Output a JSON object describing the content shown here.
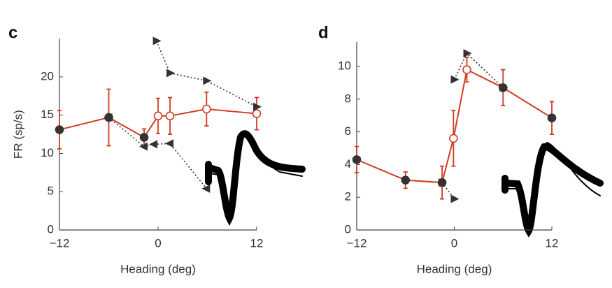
{
  "chart_data": [
    {
      "type": "line",
      "label": "c",
      "xlabel": "Heading (deg)",
      "ylabel": "FR (sp/s)",
      "xlim": [
        -12,
        12
      ],
      "xticks": [
        {
          "value": -12,
          "label": "−12"
        },
        0,
        12
      ],
      "ylim": [
        0,
        25
      ],
      "yticks": [
        0,
        5,
        10,
        15,
        20
      ],
      "series": [
        {
          "color": "#d13b22",
          "style": "solid",
          "marker": "circle",
          "x": [
            -12,
            -6,
            -1.7,
            0,
            1.45,
            5.9,
            12
          ],
          "values": [
            13.1,
            14.7,
            12.1,
            14.9,
            14.9,
            15.8,
            15.2
          ],
          "errors": [
            2.5,
            3.7,
            1.1,
            2.3,
            2.4,
            2.2,
            2.1
          ],
          "open": [
            false,
            false,
            false,
            true,
            true,
            true,
            true
          ]
        },
        {
          "color": "#333333",
          "style": "dotted",
          "marker": "triangle-left",
          "x": [
            -6,
            -1.7,
            -0.5,
            1.45,
            5.9
          ],
          "values": [
            14.7,
            10.9,
            11.2,
            11.3,
            5.4
          ]
        },
        {
          "color": "#333333",
          "style": "dotted",
          "marker": "triangle-right",
          "x": [
            -0.2,
            1.45,
            5.9,
            12
          ],
          "values": [
            24.7,
            20.5,
            19.5,
            16.1
          ]
        }
      ]
    },
    {
      "type": "line",
      "label": "d",
      "xlabel": "Heading (deg)",
      "xlim": [
        -12,
        12
      ],
      "xticks": [
        {
          "value": -12,
          "label": "−12"
        },
        0,
        12
      ],
      "ylim": [
        0,
        11.5
      ],
      "yticks": [
        0,
        2,
        4,
        6,
        8,
        10
      ],
      "series": [
        {
          "color": "#d13b22",
          "style": "solid",
          "marker": "circle",
          "x": [
            -12,
            -6,
            -1.5,
            -0.1,
            1.55,
            6,
            12
          ],
          "values": [
            4.3,
            3.05,
            2.9,
            5.6,
            9.8,
            8.7,
            6.85
          ],
          "errors": [
            0.8,
            0.5,
            1.0,
            1.7,
            0.75,
            1.1,
            1.0
          ],
          "open": [
            false,
            false,
            false,
            true,
            true,
            false,
            false
          ]
        },
        {
          "color": "#333333",
          "style": "dotted",
          "marker": "triangle-right",
          "x": [
            -1.5,
            0
          ],
          "values": [
            2.9,
            1.9
          ]
        },
        {
          "color": "#333333",
          "style": "dotted",
          "marker": "triangle-right",
          "x": [
            0,
            1.55,
            6
          ],
          "values": [
            9.2,
            10.8,
            8.7
          ]
        }
      ]
    }
  ]
}
